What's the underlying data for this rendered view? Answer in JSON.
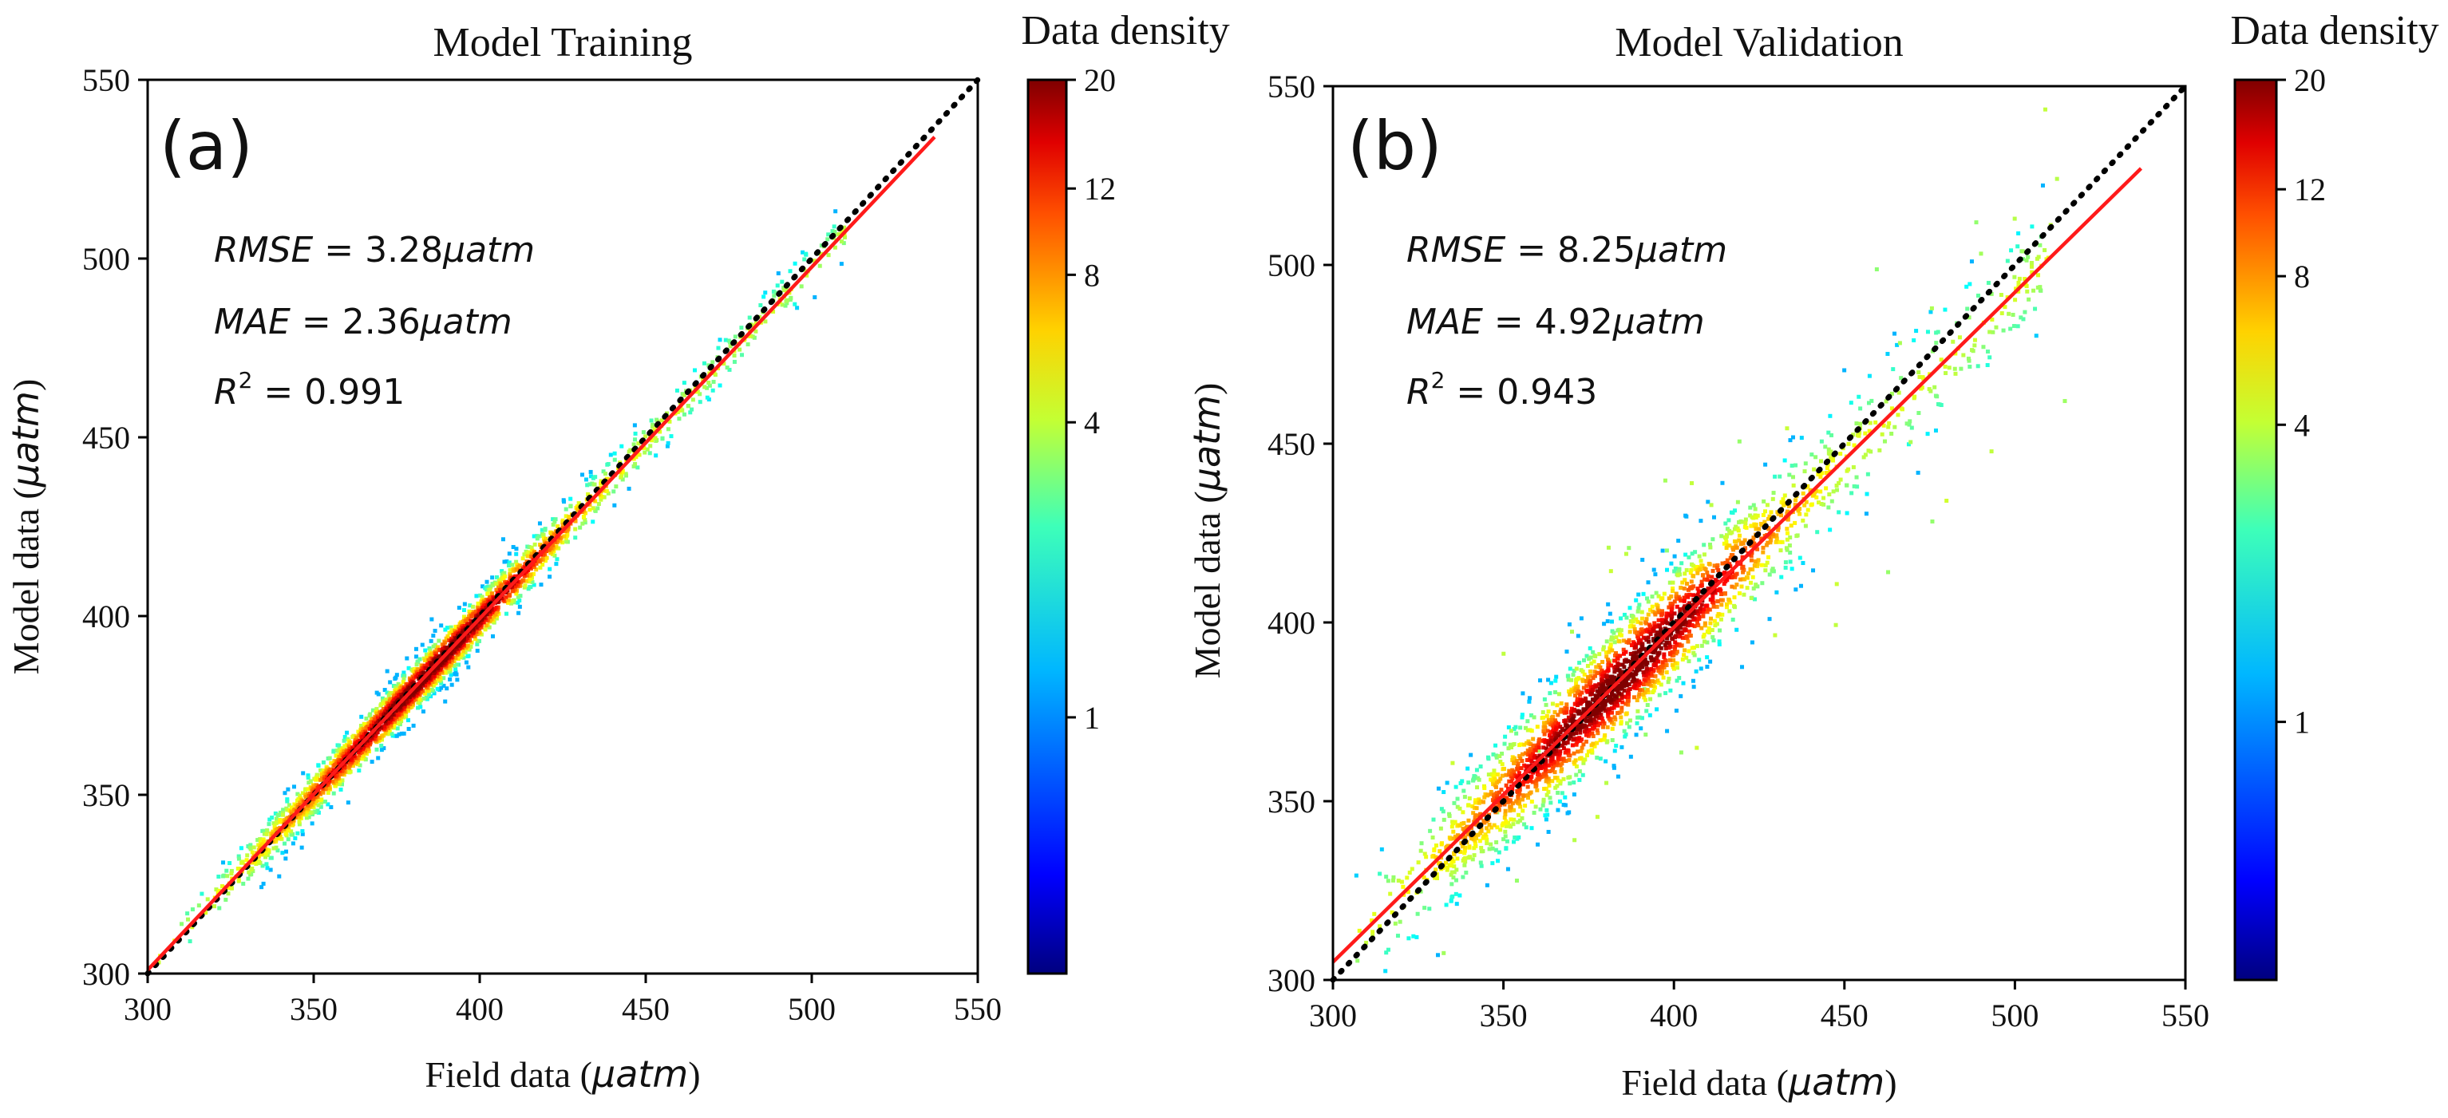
{
  "chart_data": [
    {
      "type": "scatter",
      "panel_label": "(a)",
      "title": "Model Training",
      "xlabel_prefix": "Field data (",
      "xlabel_unit": "μatm",
      "xlabel_suffix": ")",
      "ylabel_prefix": "Model data (",
      "ylabel_unit": "μatm",
      "ylabel_suffix": ")",
      "xlim": [
        300,
        550
      ],
      "ylim": [
        300,
        550
      ],
      "xticks": [
        "300",
        "350",
        "400",
        "450",
        "500",
        "550"
      ],
      "yticks": [
        "300",
        "350",
        "400",
        "450",
        "500",
        "550"
      ],
      "stats": {
        "rmse": {
          "name": "RMSE",
          "eq": " = ",
          "value": "3.28",
          "unit": "μatm"
        },
        "mae": {
          "name": "MAE",
          "eq": " = ",
          "value": "2.36",
          "unit": "μatm"
        },
        "r2": {
          "name": "R",
          "sup": "2",
          "eq": " = ",
          "value": "0.991"
        }
      },
      "fit_line": {
        "x": [
          300,
          537
        ],
        "y": [
          301,
          534
        ],
        "color": "#ff1a1a"
      },
      "identity_line": {
        "x": [
          300,
          550
        ],
        "y": [
          300,
          550
        ],
        "style": "dotted",
        "color": "#000000"
      },
      "scatter_spread": 3.3,
      "colorbar": {
        "label": "Data density",
        "scale": "log",
        "ticks": [
          20,
          12,
          8,
          4,
          1
        ],
        "tick_labels": [
          "20",
          "12",
          "8",
          "4",
          "1"
        ],
        "range": [
          0.3,
          20
        ],
        "colormap": "jet"
      }
    },
    {
      "type": "scatter",
      "panel_label": "(b)",
      "title": "Model Validation",
      "xlabel_prefix": "Field data (",
      "xlabel_unit": "μatm",
      "xlabel_suffix": ")",
      "ylabel_prefix": "Model data (",
      "ylabel_unit": "μatm",
      "ylabel_suffix": ")",
      "xlim": [
        300,
        550
      ],
      "ylim": [
        300,
        550
      ],
      "xticks": [
        "300",
        "350",
        "400",
        "450",
        "500",
        "550"
      ],
      "yticks": [
        "300",
        "350",
        "400",
        "450",
        "500",
        "550"
      ],
      "stats": {
        "rmse": {
          "name": "RMSE",
          "eq": " = ",
          "value": "8.25",
          "unit": "μatm"
        },
        "mae": {
          "name": "MAE",
          "eq": " = ",
          "value": "4.92",
          "unit": "μatm"
        },
        "r2": {
          "name": "R",
          "sup": "2",
          "eq": " = ",
          "value": "0.943"
        }
      },
      "fit_line": {
        "x": [
          300,
          537
        ],
        "y": [
          305,
          527
        ],
        "color": "#ff1a1a"
      },
      "identity_line": {
        "x": [
          300,
          550
        ],
        "y": [
          300,
          550
        ],
        "style": "dotted",
        "color": "#000000"
      },
      "scatter_spread": 8.2,
      "colorbar": {
        "label": "Data density",
        "scale": "log",
        "ticks": [
          20,
          12,
          8,
          4,
          1
        ],
        "tick_labels": [
          "20",
          "12",
          "8",
          "4",
          "1"
        ],
        "range": [
          0.3,
          20
        ],
        "colormap": "jet"
      }
    }
  ]
}
